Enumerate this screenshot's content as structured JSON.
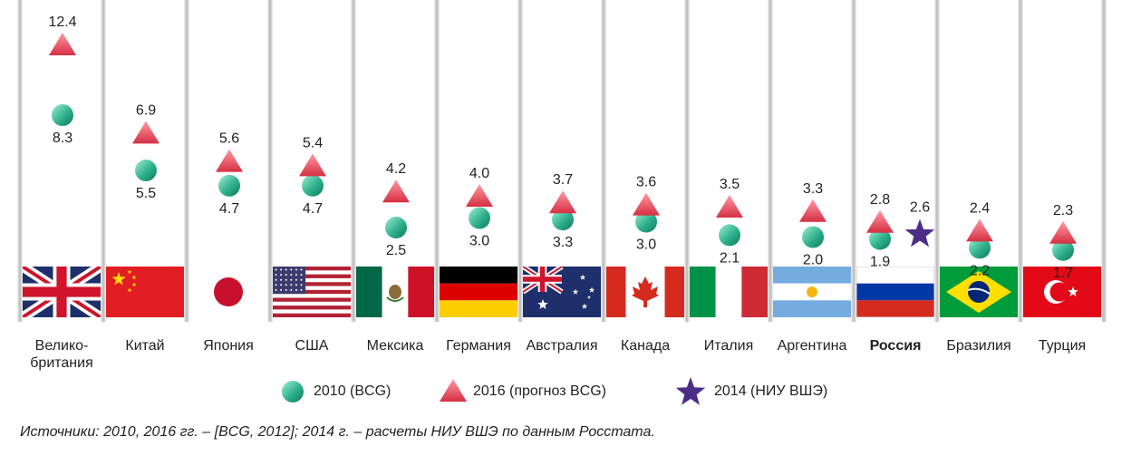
{
  "chart_data": {
    "type": "scatter",
    "categories": [
      "Велико-\nбритания",
      "Китай",
      "Япония",
      "США",
      "Мексика",
      "Германия",
      "Австралия",
      "Канада",
      "Италия",
      "Аргентина",
      "Россия",
      "Бразилия",
      "Турция"
    ],
    "highlight_category": "Россия",
    "series": [
      {
        "name": "2010 (BCG)",
        "marker": "circle",
        "values": [
          8.3,
          5.5,
          4.7,
          4.7,
          2.5,
          3.0,
          3.3,
          3.0,
          2.1,
          2.0,
          1.9,
          2.2,
          1.7
        ]
      },
      {
        "name": "2016 (прогноз BCG)",
        "marker": "triangle",
        "values": [
          12.4,
          6.9,
          5.6,
          5.4,
          4.2,
          4.0,
          3.7,
          3.6,
          3.5,
          3.3,
          2.8,
          2.4,
          2.3
        ]
      },
      {
        "name": "2014 (НИУ ВШЭ)",
        "marker": "star",
        "values": [
          null,
          null,
          null,
          null,
          null,
          null,
          null,
          null,
          null,
          null,
          2.6,
          null,
          null
        ]
      }
    ],
    "legend_position": "bottom",
    "grid": false
  },
  "colors": {
    "circle_light": "#8fe3c4",
    "circle_dark": "#0e8a6a",
    "triangle_light": "#ff8a96",
    "triangle_dark": "#d63244",
    "star": "#4b2f86",
    "divider": "#c8c8c8"
  },
  "flags": [
    "uk-flag-icon",
    "china-flag-icon",
    "japan-flag-icon",
    "usa-flag-icon",
    "mexico-flag-icon",
    "germany-flag-icon",
    "australia-flag-icon",
    "canada-flag-icon",
    "italy-flag-icon",
    "argentina-flag-icon",
    "russia-flag-icon",
    "brazil-flag-icon",
    "turkey-flag-icon"
  ],
  "source_note": "Источники: 2010, 2016 гг. – [BCG, 2012]; 2014 г. – расчеты НИУ ВШЭ по данным Росстата."
}
